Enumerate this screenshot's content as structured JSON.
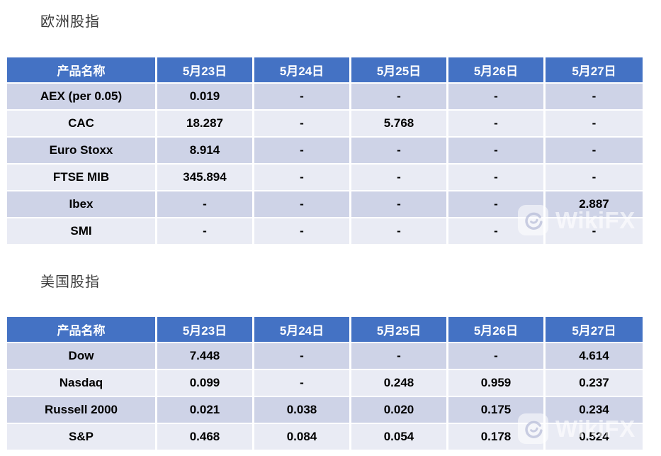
{
  "colors": {
    "header_bg": "#4472C4",
    "row_dark": "#CED3E7",
    "row_light": "#E9EBF4",
    "header_text": "#ffffff",
    "cell_text": "#000000",
    "title_text": "#3a3a3a"
  },
  "watermark": {
    "text": "WikiFX",
    "logo": "wikifx-swirl-logo"
  },
  "sections": [
    {
      "title": "欧洲股指",
      "columns": [
        "产品名称",
        "5月23日",
        "5月24日",
        "5月25日",
        "5月26日",
        "5月27日"
      ],
      "rows": [
        {
          "name": "AEX (per 0.05)",
          "values": [
            "0.019",
            "-",
            "-",
            "-",
            "-"
          ]
        },
        {
          "name": "CAC",
          "values": [
            "18.287",
            "-",
            "5.768",
            "-",
            "-"
          ]
        },
        {
          "name": "Euro Stoxx",
          "values": [
            "8.914",
            "-",
            "-",
            "-",
            "-"
          ]
        },
        {
          "name": "FTSE MIB",
          "values": [
            "345.894",
            "-",
            "-",
            "-",
            "-"
          ]
        },
        {
          "name": "Ibex",
          "values": [
            "-",
            "-",
            "-",
            "-",
            "2.887"
          ]
        },
        {
          "name": "SMI",
          "values": [
            "-",
            "-",
            "-",
            "-",
            "-"
          ]
        }
      ]
    },
    {
      "title": "美国股指",
      "columns": [
        "产品名称",
        "5月23日",
        "5月24日",
        "5月25日",
        "5月26日",
        "5月27日"
      ],
      "rows": [
        {
          "name": "Dow",
          "values": [
            "7.448",
            "-",
            "-",
            "-",
            "4.614"
          ]
        },
        {
          "name": "Nasdaq",
          "values": [
            "0.099",
            "-",
            "0.248",
            "0.959",
            "0.237"
          ]
        },
        {
          "name": "Russell 2000",
          "values": [
            "0.021",
            "0.038",
            "0.020",
            "0.175",
            "0.234"
          ]
        },
        {
          "name": "S&P",
          "values": [
            "0.468",
            "0.084",
            "0.054",
            "0.178",
            "0.524"
          ]
        }
      ]
    }
  ]
}
